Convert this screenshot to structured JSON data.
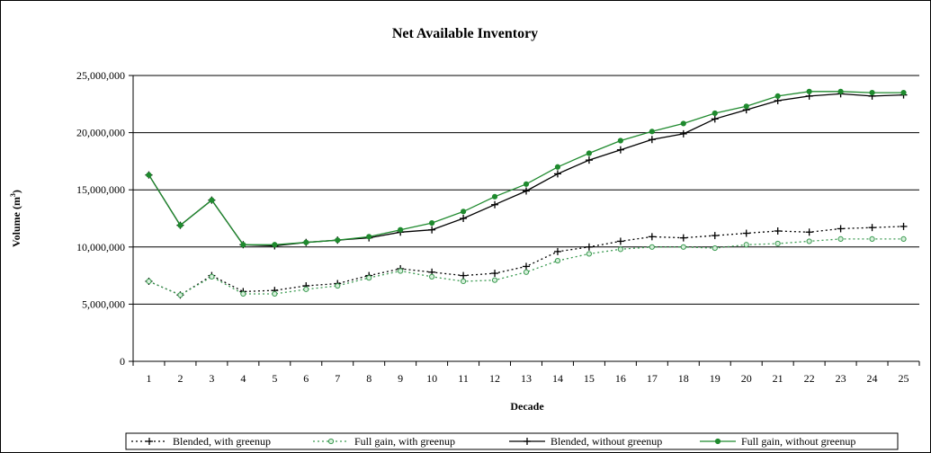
{
  "chart_data": {
    "type": "line",
    "title": "Net Available Inventory",
    "xlabel": "Decade",
    "ylabel": "Volume (m",
    "ylabel_sup": "3",
    "ylabel_close": ")",
    "categories": [
      "1",
      "2",
      "3",
      "4",
      "5",
      "6",
      "7",
      "8",
      "9",
      "10",
      "11",
      "12",
      "13",
      "14",
      "15",
      "16",
      "17",
      "18",
      "19",
      "20",
      "21",
      "22",
      "23",
      "24",
      "25"
    ],
    "ylim": [
      0,
      25000000
    ],
    "yticks": [
      0,
      5000000,
      10000000,
      15000000,
      20000000,
      25000000
    ],
    "ytick_labels": [
      "0",
      "5,000,000",
      "10,000,000",
      "15,000,000",
      "20,000,000",
      "25,000,000"
    ],
    "grid": "horizontal",
    "legend_position": "bottom",
    "series": [
      {
        "name": "Blended, with greenup",
        "color": "#000000",
        "dash": "dotted",
        "marker": "plus",
        "values": [
          7000000,
          5800000,
          7500000,
          6100000,
          6200000,
          6600000,
          6800000,
          7500000,
          8100000,
          7800000,
          7500000,
          7700000,
          8300000,
          9600000,
          10000000,
          10500000,
          10900000,
          10800000,
          11000000,
          11200000,
          11400000,
          11300000,
          11600000,
          11700000,
          11800000
        ]
      },
      {
        "name": "Full gain, with greenup",
        "color": "#3a9a50",
        "dash": "dotted",
        "marker": "circle",
        "values": [
          7000000,
          5800000,
          7400000,
          5900000,
          5900000,
          6300000,
          6600000,
          7300000,
          7900000,
          7400000,
          7000000,
          7100000,
          7800000,
          8800000,
          9400000,
          9800000,
          10000000,
          10000000,
          9900000,
          10200000,
          10300000,
          10500000,
          10700000,
          10700000,
          10700000
        ]
      },
      {
        "name": "Blended, without greenup",
        "color": "#000000",
        "dash": "solid",
        "marker": "plus",
        "values": [
          16300000,
          11900000,
          14100000,
          10200000,
          10100000,
          10400000,
          10600000,
          10800000,
          11300000,
          11500000,
          12500000,
          13700000,
          14900000,
          16400000,
          17600000,
          18500000,
          19400000,
          19900000,
          21200000,
          22000000,
          22800000,
          23200000,
          23400000,
          23200000,
          23300000
        ]
      },
      {
        "name": "Full gain, without greenup",
        "color": "#1f8a2e",
        "dash": "solid",
        "marker": "circle",
        "values": [
          16300000,
          11900000,
          14100000,
          10200000,
          10200000,
          10400000,
          10600000,
          10900000,
          11500000,
          12100000,
          13100000,
          14400000,
          15500000,
          17000000,
          18200000,
          19300000,
          20100000,
          20800000,
          21700000,
          22300000,
          23200000,
          23600000,
          23600000,
          23500000,
          23500000
        ]
      }
    ]
  }
}
